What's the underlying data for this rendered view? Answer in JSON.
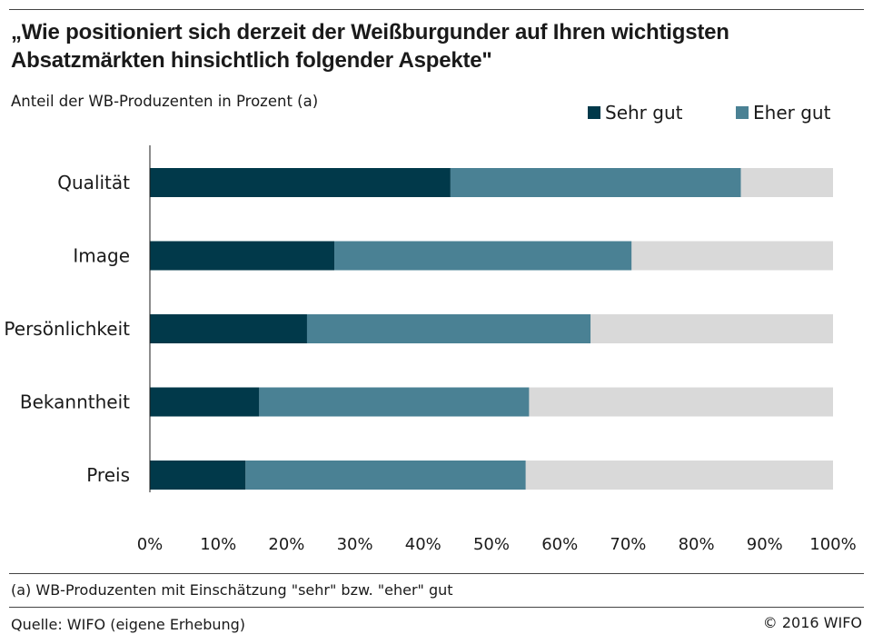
{
  "header": {
    "title": "„Wie positioniert sich derzeit der Weißburgunder auf Ihren wichtigsten Absatzmärkten hinsichtlich folgender Aspekte\"",
    "subtitle": "Anteil der WB-Produzenten in Prozent (a)"
  },
  "footer": {
    "footnote": "(a) WB-Produzenten mit Einschätzung \"sehr\" bzw. \"eher\" gut",
    "source": "Quelle: WIFO (eigene Erhebung)",
    "copyright": "© 2016 WIFO"
  },
  "colors": {
    "sehr_gut": "#01394a",
    "eher_gut": "#4a8194",
    "rest": "#d9d9d9"
  },
  "chart_data": {
    "type": "bar",
    "orientation": "horizontal",
    "stacked": true,
    "categories": [
      "Qualität",
      "Image",
      "Persönlichkeit",
      "Bekanntheit",
      "Preis"
    ],
    "series": [
      {
        "name": "Sehr gut",
        "values": [
          44,
          27,
          23,
          16,
          14
        ]
      },
      {
        "name": "Eher gut",
        "values": [
          42.5,
          43.5,
          41.5,
          39.5,
          41
        ]
      }
    ],
    "xlim": [
      0,
      100
    ],
    "xticks": [
      "0%",
      "10%",
      "20%",
      "30%",
      "40%",
      "50%",
      "60%",
      "70%",
      "80%",
      "90%",
      "100%"
    ],
    "legend": "top-right",
    "grid": false
  }
}
